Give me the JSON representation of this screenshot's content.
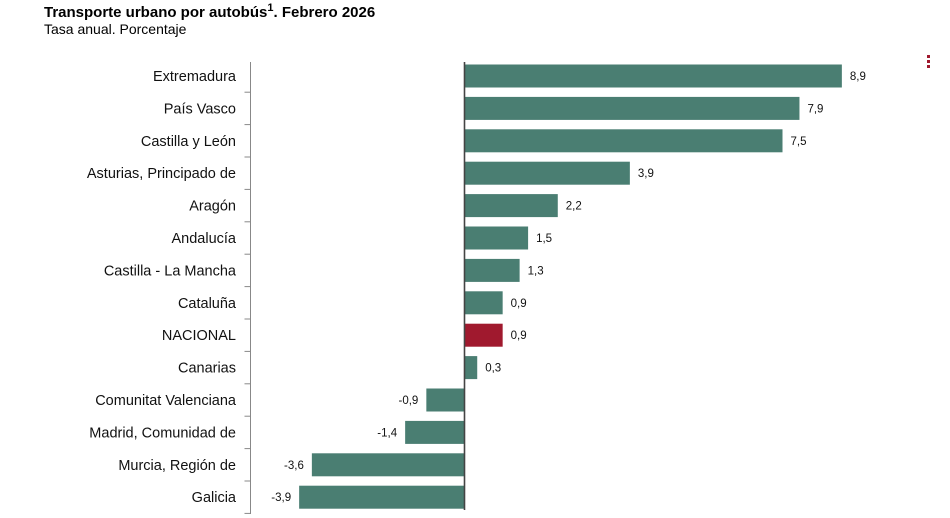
{
  "title_text": "Transporte urbano por autobús",
  "title_sup": "1",
  "title_rest": ". Febrero 2026",
  "subtitle": "Tasa anual. Porcentaje",
  "menu_icon": "vertical-dots-menu-icon",
  "colors": {
    "bar": "#4a7e72",
    "highlight": "#a0192e",
    "axis": "#444444"
  },
  "chart_data": {
    "type": "bar",
    "orientation": "horizontal",
    "title": "Transporte urbano por autobús1. Febrero 2026",
    "subtitle": "Tasa anual. Porcentaje",
    "categories": [
      "Extremadura",
      "País Vasco",
      "Castilla y León",
      "Asturias, Principado de",
      "Aragón",
      "Andalucía",
      "Castilla - La Mancha",
      "Cataluña",
      "NACIONAL",
      "Canarias",
      "Comunitat Valenciana",
      "Madrid, Comunidad de",
      "Murcia, Región de",
      "Galicia"
    ],
    "values": [
      8.9,
      7.9,
      7.5,
      3.9,
      2.2,
      1.5,
      1.3,
      0.9,
      0.9,
      0.3,
      -0.9,
      -1.4,
      -3.6,
      -3.9
    ],
    "value_labels": [
      "8,9",
      "7,9",
      "7,5",
      "3,9",
      "2,2",
      "1,5",
      "1,3",
      "0,9",
      "0,9",
      "0,3",
      "-0,9",
      "-1,4",
      "-3,6",
      "-3,9"
    ],
    "highlight_category": "NACIONAL",
    "xlim": [
      -4,
      9
    ],
    "grid": false
  }
}
